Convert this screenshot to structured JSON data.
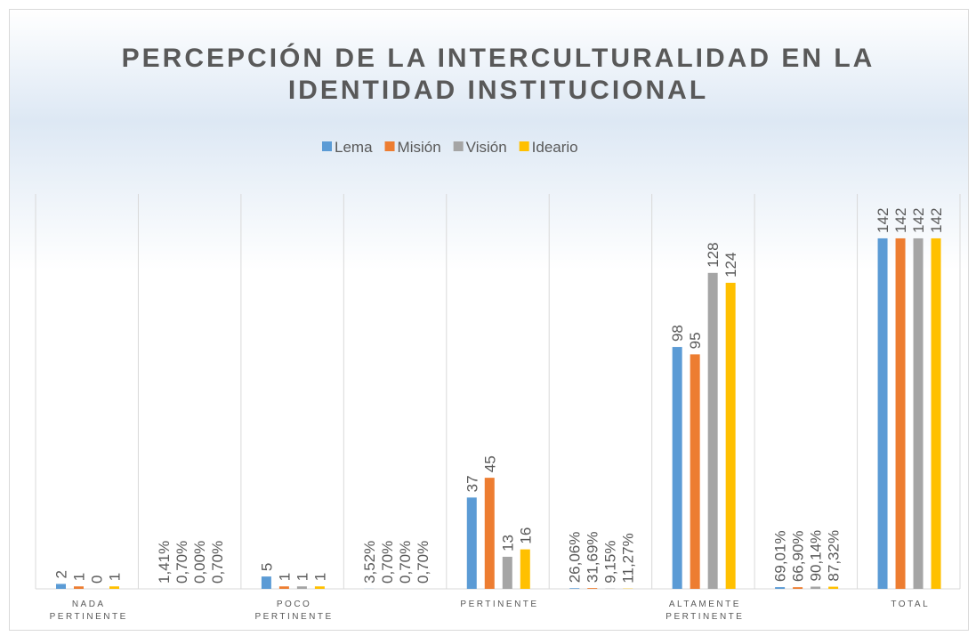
{
  "chart_data": {
    "type": "bar",
    "title": "PERCEPCIÓN DE LA INTERCULTURALIDAD EN LA IDENTIDAD INSTITUCIONAL",
    "categories": [
      "NADA PERTINENTE",
      null,
      "POCO PERTINENTE",
      null,
      "PERTINENTE",
      null,
      "ALTAMENTE PERTINENTE",
      null,
      "TOTAL"
    ],
    "series": [
      {
        "name": "Lema",
        "color": "#5b9bd5",
        "values": [
          2,
          0.0141,
          5,
          0.0352,
          37,
          0.2606,
          98,
          0.6901,
          142
        ],
        "value_labels": [
          "2",
          "1,41%",
          "5",
          "3,52%",
          "37",
          "26,06%",
          "98",
          "69,01%",
          "142"
        ]
      },
      {
        "name": "Misión",
        "color": "#ed7d31",
        "values": [
          1,
          0.007,
          1,
          0.007,
          45,
          0.3169,
          95,
          0.669,
          142
        ],
        "value_labels": [
          "1",
          "0,70%",
          "1",
          "0,70%",
          "45",
          "31,69%",
          "95",
          "66,90%",
          "142"
        ]
      },
      {
        "name": "Visión",
        "color": "#a5a5a5",
        "values": [
          0,
          0,
          1,
          0.007,
          13,
          0.0915,
          128,
          0.9014,
          142
        ],
        "value_labels": [
          "0",
          "0,00%",
          "1",
          "0,70%",
          "13",
          "9,15%",
          "128",
          "90,14%",
          "142"
        ]
      },
      {
        "name": "Ideario",
        "color": "#ffc000",
        "values": [
          1,
          0.007,
          1,
          0.007,
          16,
          0.1127,
          124,
          0.8732,
          142
        ],
        "value_labels": [
          "1",
          "0,70%",
          "1",
          "0,70%",
          "16",
          "11,27%",
          "124",
          "87,32%",
          "142"
        ]
      }
    ],
    "ylim": [
      0,
      160
    ],
    "legend": "top",
    "grid": "vertical"
  }
}
